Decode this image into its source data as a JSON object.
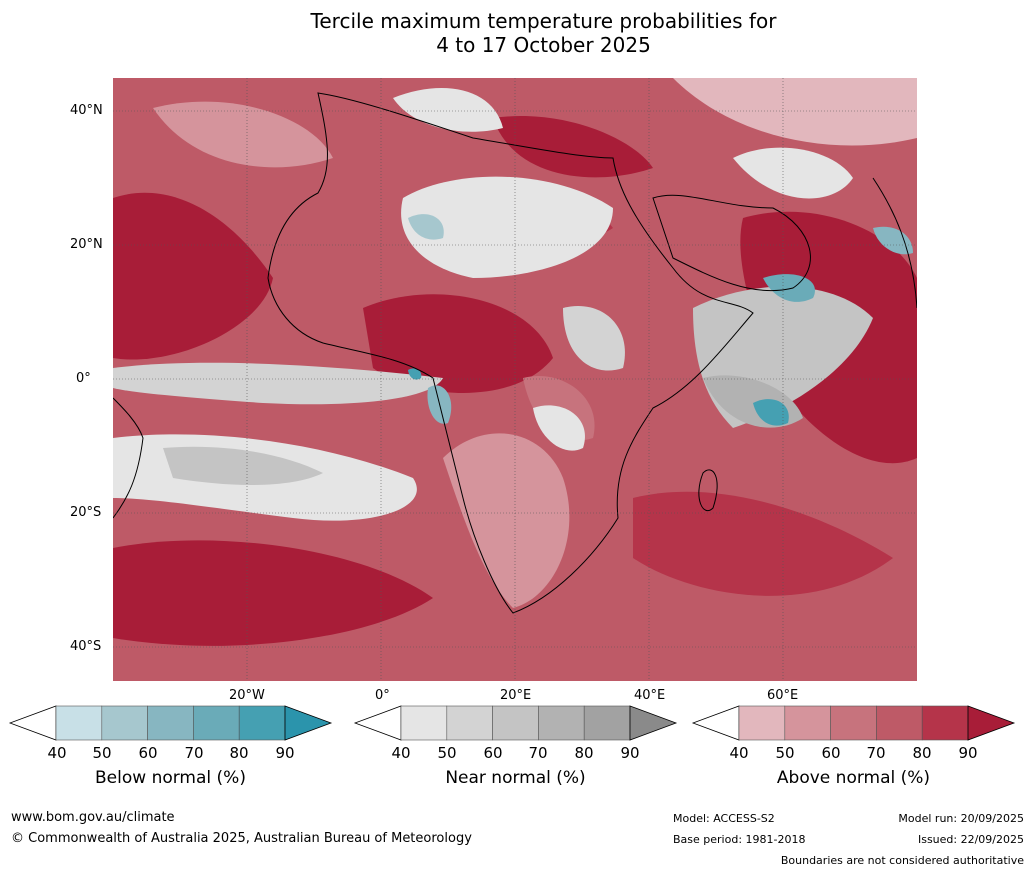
{
  "title_line1": "Tercile maximum temperature probabilities for",
  "title_line2": "4 to 17 October 2025",
  "map": {
    "lat_labels": [
      "40°N",
      "20°N",
      "0°",
      "20°S",
      "40°S"
    ],
    "lon_labels": [
      "20°W",
      "0°",
      "20°E",
      "40°E",
      "60°E"
    ]
  },
  "legends": {
    "below": {
      "title": "Below normal (%)",
      "ticks": [
        "40",
        "50",
        "60",
        "70",
        "80",
        "90"
      ],
      "colors": [
        "#ffffff",
        "#c8e0e7",
        "#a6c7ce",
        "#87b6c1",
        "#6aabb8",
        "#45a0b2",
        "#2b94ac"
      ]
    },
    "near": {
      "title": "Near normal (%)",
      "ticks": [
        "40",
        "50",
        "60",
        "70",
        "80",
        "90"
      ],
      "colors": [
        "#ffffff",
        "#e5e5e5",
        "#d3d3d3",
        "#c4c4c4",
        "#b2b2b2",
        "#a2a2a2",
        "#8a8a8a"
      ]
    },
    "above": {
      "title": "Above normal (%)",
      "ticks": [
        "40",
        "50",
        "60",
        "70",
        "80",
        "90"
      ],
      "colors": [
        "#ffffff",
        "#e2b7bd",
        "#d5949c",
        "#c7737d",
        "#be5a67",
        "#b5344a",
        "#a81d38"
      ]
    }
  },
  "footer": {
    "website": "www.bom.gov.au/climate",
    "copyright": "© Commonwealth of Australia 2025, Australian Bureau of Meteorology",
    "model": "Model: ACCESS-S2",
    "base_period": "Base period: 1981-2018",
    "model_run": "Model run: 20/09/2025",
    "issued": "Issued: 22/09/2025",
    "disclaimer": "Boundaries are not considered authoritative"
  }
}
